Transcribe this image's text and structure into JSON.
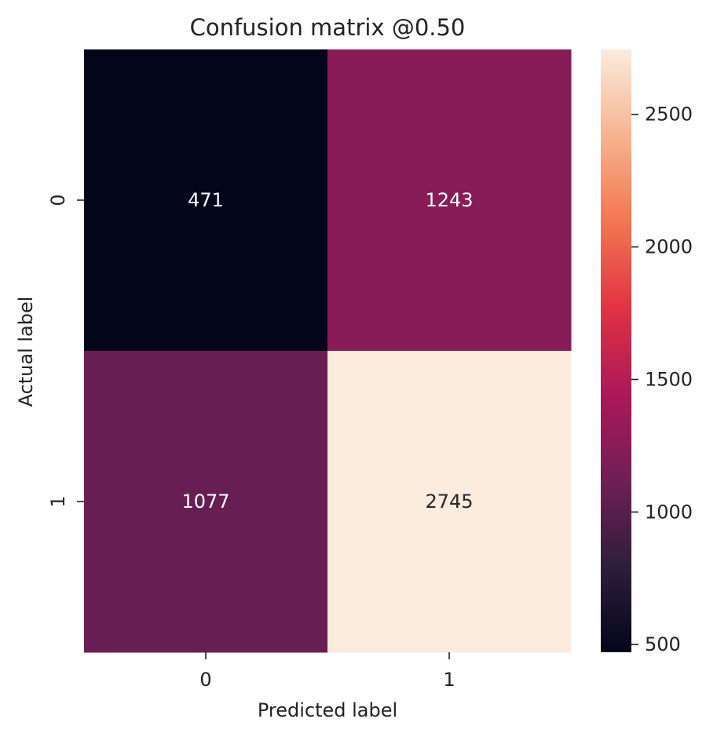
{
  "chart_data": {
    "type": "heatmap",
    "title": "Confusion matrix @0.50",
    "xlabel": "Predicted label",
    "ylabel": "Actual label",
    "x_categories": [
      "0",
      "1"
    ],
    "y_categories": [
      "0",
      "1"
    ],
    "values": [
      [
        471,
        1243
      ],
      [
        1077,
        2745
      ]
    ],
    "colorbar": {
      "range": [
        471,
        2745
      ],
      "ticks": [
        500,
        1000,
        1500,
        2000,
        2500
      ],
      "tick_labels": [
        "500",
        "1000",
        "1500",
        "2000",
        "2500"
      ]
    },
    "colormap": "rocket",
    "colormap_stops": [
      "#03051a",
      "#2e1e3c",
      "#701f57",
      "#ad1759",
      "#e13342",
      "#f37651",
      "#f6b48f",
      "#faebdd"
    ],
    "annotation_colors": {
      "light": "#ffffff",
      "dark": "#262626"
    },
    "grid": false
  }
}
